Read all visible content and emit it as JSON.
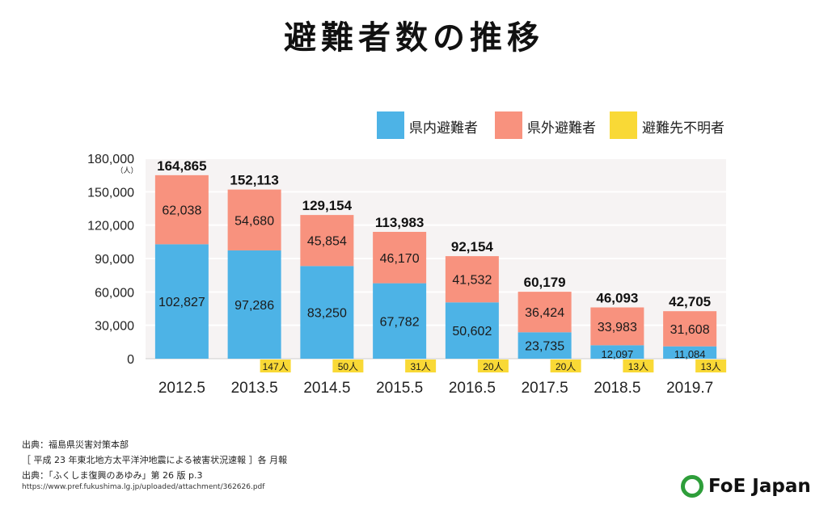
{
  "title": "避難者数の推移",
  "legend": [
    {
      "label": "県内避難者",
      "color": "#4db3e6"
    },
    {
      "label": "県外避難者",
      "color": "#f8927e"
    },
    {
      "label": "避難先不明者",
      "color": "#f9d936"
    }
  ],
  "chart_data": {
    "type": "bar",
    "stacked": true,
    "categories": [
      "2012.5",
      "2013.5",
      "2014.5",
      "2015.5",
      "2016.5",
      "2017.5",
      "2018.5",
      "2019.7"
    ],
    "series": [
      {
        "name": "県内避難者",
        "color": "#4db3e6",
        "values": [
          102827,
          97286,
          83250,
          67782,
          50602,
          23735,
          12097,
          11084
        ],
        "labels": [
          "102,827",
          "97,286",
          "83,250",
          "67,782",
          "50,602",
          "23,735",
          "12,097",
          "11,084"
        ]
      },
      {
        "name": "県外避難者",
        "color": "#f8927e",
        "values": [
          62038,
          54680,
          45854,
          46170,
          41532,
          36424,
          33983,
          31608
        ],
        "labels": [
          "62,038",
          "54,680",
          "45,854",
          "46,170",
          "41,532",
          "36,424",
          "33,983",
          "31,608"
        ]
      },
      {
        "name": "避難先不明者",
        "color": "#f9d936",
        "values": [
          null,
          147,
          50,
          31,
          20,
          20,
          13,
          13
        ],
        "labels": [
          "",
          "147人",
          "50人",
          "31人",
          "20人",
          "20人",
          "13人",
          "13人"
        ]
      }
    ],
    "totals": [
      "164,865",
      "152,113",
      "129,154",
      "113,983",
      "92,154",
      "60,179",
      "46,093",
      "42,705"
    ],
    "total_values": [
      164865,
      152113,
      129154,
      113983,
      92154,
      60179,
      46093,
      42705
    ],
    "ylim": [
      0,
      180000
    ],
    "yticks": [
      0,
      30000,
      60000,
      90000,
      120000,
      150000,
      180000
    ],
    "ytick_labels": [
      "0",
      "30,000",
      "60,000",
      "90,000",
      "120,000",
      "150,000",
      "180,000"
    ],
    "yunit": "（人）",
    "grid": true,
    "legend_position": "top-right"
  },
  "sources": {
    "line1": "出典：福島県災害対策本部",
    "line2": "［ 平成 23 年東北地方太平洋沖地震による被害状況速報 ］各 月報",
    "line3": "出典：「ふくしま復興のあゆみ」第 26 版 p.3",
    "url": "https://www.pref.fukushima.lg.jp/uploaded/attachment/362626.pdf"
  },
  "logo": {
    "text": "FoE Japan",
    "color": "#2e9e3a"
  }
}
